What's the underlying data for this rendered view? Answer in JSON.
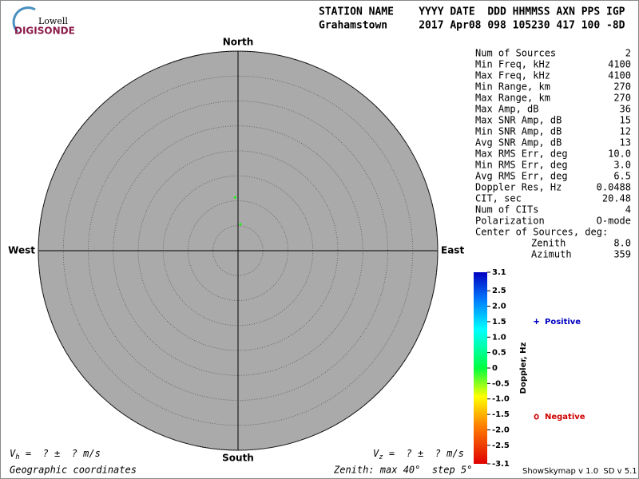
{
  "logo": {
    "line1": "Lowell",
    "line2": "DIGISONDE"
  },
  "header": {
    "labels": "STATION NAME    YYYY DATE  DDD HHMMSS AXN PPS IGP",
    "values": "Grahamstown     2017 Apr08 098 105230 417 100 -8D"
  },
  "chart_data": {
    "type": "polar-scatter",
    "directions": {
      "north": "North",
      "south": "South",
      "east": "East",
      "west": "West"
    },
    "rlim": [
      0,
      40
    ],
    "rticks": [
      5,
      10,
      15,
      20,
      25,
      30,
      35,
      40
    ],
    "zenith": [
      10.7,
      5.3
    ],
    "azimuth": [
      357,
      5
    ],
    "doppler": [
      0,
      0
    ],
    "colorbar": {
      "label": "Doppler, Hz",
      "lim": [
        -3.1,
        3.1
      ],
      "ticks": [
        3.1,
        2.5,
        {
          "value": 2,
          "label": "2.0"
        },
        1.5,
        {
          "value": 1,
          "label": "1.0"
        },
        0.5,
        0,
        -0.5,
        {
          "value": -1,
          "label": "-1.0"
        },
        -1.5,
        {
          "value": -2,
          "label": "-2.0"
        },
        -2.5,
        -3.1
      ]
    },
    "legend": {
      "positive_symbol": "+",
      "positive": "Positive",
      "negative_symbol": "o",
      "negative": "Negative"
    }
  },
  "stats": [
    [
      "Num of Sources",
      "2"
    ],
    [
      "Min Freq, kHz",
      "4100"
    ],
    [
      "Max Freq, kHz",
      "4100"
    ],
    [
      "Min Range, km",
      "270"
    ],
    [
      "Max Range, km",
      "270"
    ],
    [
      "Max Amp, dB",
      "36"
    ],
    [
      "Max SNR Amp, dB",
      "15"
    ],
    [
      "Min SNR Amp, dB",
      "12"
    ],
    [
      "Avg SNR Amp, dB",
      "13"
    ],
    [
      "Max RMS Err, deg",
      "10.0"
    ],
    [
      "Min RMS Err, deg",
      "3.0"
    ],
    [
      "Avg RMS Err, deg",
      "6.5"
    ],
    [
      "Doppler Res, Hz",
      "0.0488"
    ],
    [
      "CIT, sec",
      "20.48"
    ],
    [
      "Num of CITs",
      "4"
    ],
    [
      "Polarization",
      "O-mode"
    ]
  ],
  "center": {
    "title": "Center of Sources, deg:",
    "rows": [
      [
        "Zenith",
        "8.0"
      ],
      [
        "Azimuth",
        "359"
      ]
    ]
  },
  "footer": {
    "vh_symbol": "V",
    "vh_sub": "h",
    "vh_rest": " =  ? ±  ? m/s",
    "vz_symbol": "V",
    "vz_sub": "z",
    "vz_rest": " =  ? ±  ? m/s",
    "coords": "Geographic coordinates",
    "zenith_note": "Zenith: max 40°  step 5°",
    "version": "ShowSkymap v 1.0  SD v 5.1"
  }
}
